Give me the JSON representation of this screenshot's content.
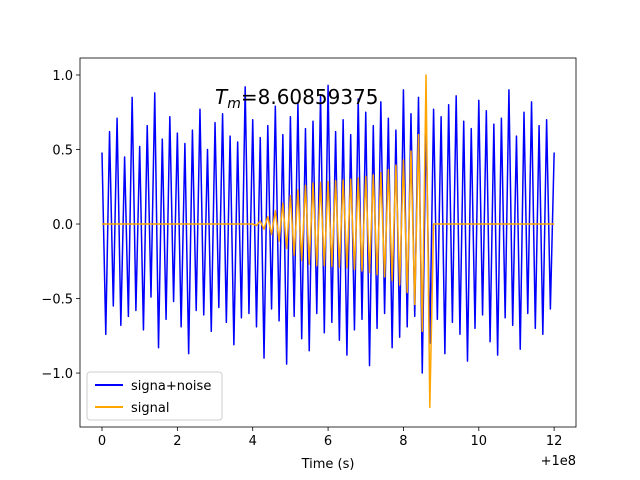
{
  "chart_data": {
    "type": "line",
    "annotation": [
      "T",
      "m",
      "=8.60859375"
    ],
    "xlabel": "Time (s)",
    "xoffset_label": "+1e8",
    "x": [
      0,
      0.1,
      0.2,
      0.3,
      0.4,
      0.5,
      0.6,
      0.7,
      0.8,
      0.9,
      1,
      1.1,
      1.2,
      1.3,
      1.4,
      1.5,
      1.6,
      1.7,
      1.8,
      1.9,
      2,
      2.1,
      2.2,
      2.3,
      2.4,
      2.5,
      2.6,
      2.7,
      2.8,
      2.9,
      3,
      3.1,
      3.2,
      3.3,
      3.4,
      3.5,
      3.6,
      3.7,
      3.8,
      3.9,
      4,
      4.1,
      4.2,
      4.3,
      4.4,
      4.5,
      4.6,
      4.7,
      4.8,
      4.9,
      5,
      5.1,
      5.2,
      5.3,
      5.4,
      5.5,
      5.6,
      5.7,
      5.8,
      5.9,
      6,
      6.1,
      6.2,
      6.3,
      6.4,
      6.5,
      6.6,
      6.7,
      6.8,
      6.9,
      7,
      7.1,
      7.2,
      7.3,
      7.4,
      7.5,
      7.6,
      7.7,
      7.8,
      7.9,
      8,
      8.1,
      8.2,
      8.3,
      8.4,
      8.5,
      8.6,
      8.7,
      8.8,
      8.9,
      9,
      9.1,
      9.2,
      9.3,
      9.4,
      9.5,
      9.6,
      9.7,
      9.8,
      9.9,
      10,
      10.1,
      10.2,
      10.3,
      10.4,
      10.5,
      10.6,
      10.7,
      10.8,
      10.9,
      11,
      11.1,
      11.2,
      11.3,
      11.4,
      11.5,
      11.6,
      11.7,
      11.8,
      11.9,
      12
    ],
    "series": [
      {
        "name": "signa+noise",
        "color": "#0000ff",
        "values": [
          0.48,
          -0.74,
          0.62,
          -0.55,
          0.71,
          -0.68,
          0.45,
          -0.62,
          0.85,
          -0.58,
          0.52,
          -0.71,
          0.66,
          -0.49,
          0.88,
          -0.83,
          0.57,
          -0.64,
          0.72,
          -0.52,
          0.61,
          -0.69,
          0.54,
          -0.87,
          0.63,
          -0.58,
          0.77,
          -0.61,
          0.5,
          -0.72,
          0.68,
          -0.56,
          0.74,
          -0.66,
          0.59,
          -0.81,
          0.55,
          -0.63,
          0.92,
          -0.6,
          0.7,
          -0.69,
          0.58,
          -0.9,
          0.66,
          -0.57,
          0.79,
          -0.65,
          0.6,
          -0.94,
          0.72,
          -0.62,
          0.81,
          -0.77,
          0.64,
          -0.85,
          0.69,
          -0.6,
          0.86,
          -0.73,
          0.93,
          -0.66,
          0.62,
          -0.78,
          0.7,
          -0.88,
          0.6,
          -0.71,
          0.84,
          -0.64,
          0.75,
          -0.95,
          0.66,
          -0.7,
          0.82,
          -0.6,
          0.71,
          -0.83,
          0.63,
          -0.76,
          0.9,
          -0.69,
          0.74,
          -0.62,
          0.85,
          -1.0,
          0.68,
          -0.8,
          0.77,
          -0.64,
          0.72,
          -0.87,
          0.8,
          -0.66,
          0.86,
          -0.74,
          0.69,
          -0.92,
          0.64,
          -0.7,
          0.83,
          -0.61,
          0.76,
          -0.79,
          0.67,
          -0.88,
          0.71,
          -0.63,
          0.9,
          -0.68,
          0.59,
          -0.84,
          0.75,
          -0.6,
          0.82,
          -0.7,
          0.66,
          -0.74,
          0.7,
          -0.57,
          0.48
        ]
      },
      {
        "name": "signal",
        "color": "#ffa500",
        "values": [
          0,
          0,
          0,
          0,
          0,
          0,
          0,
          0,
          0,
          0,
          0,
          0,
          0,
          0,
          0,
          0,
          0,
          0,
          0,
          0,
          0,
          0,
          0,
          0,
          0,
          0,
          0,
          0,
          0,
          0,
          0,
          0,
          0,
          0,
          0,
          0,
          0,
          0,
          0,
          0,
          0,
          -0.01,
          0.02,
          -0.035,
          0.05,
          -0.07,
          0.09,
          -0.115,
          0.14,
          -0.165,
          0.19,
          -0.21,
          0.23,
          -0.245,
          0.26,
          -0.27,
          0.275,
          -0.28,
          0.28,
          -0.28,
          0.285,
          -0.285,
          0.29,
          -0.29,
          0.295,
          -0.295,
          0.3,
          -0.305,
          0.31,
          -0.315,
          0.32,
          -0.325,
          0.33,
          -0.34,
          0.345,
          -0.355,
          0.365,
          -0.38,
          0.395,
          -0.41,
          0.43,
          -0.46,
          0.49,
          -0.54,
          0.6,
          -0.72,
          1.0,
          -1.23,
          0,
          0,
          0,
          0,
          0,
          0,
          0,
          0,
          0,
          0,
          0,
          0,
          0,
          0,
          0,
          0,
          0,
          0,
          0,
          0,
          0,
          0,
          0,
          0,
          0,
          0,
          0,
          0,
          0,
          0,
          0,
          0,
          0
        ]
      }
    ],
    "xlim": [
      -0.584,
      12.58
    ],
    "ylim": [
      -1.362,
      1.114
    ],
    "xticks": [
      0,
      2,
      4,
      6,
      8,
      10,
      12
    ],
    "yticks": [
      {
        "value": -1.0,
        "label": "−1.0"
      },
      {
        "value": -0.5,
        "label": "−0.5"
      },
      {
        "value": 0.0,
        "label": "0.0"
      },
      {
        "value": 0.5,
        "label": "0.5"
      },
      {
        "value": 1.0,
        "label": "1.0"
      }
    ],
    "legend": "lower left",
    "grid": false
  }
}
